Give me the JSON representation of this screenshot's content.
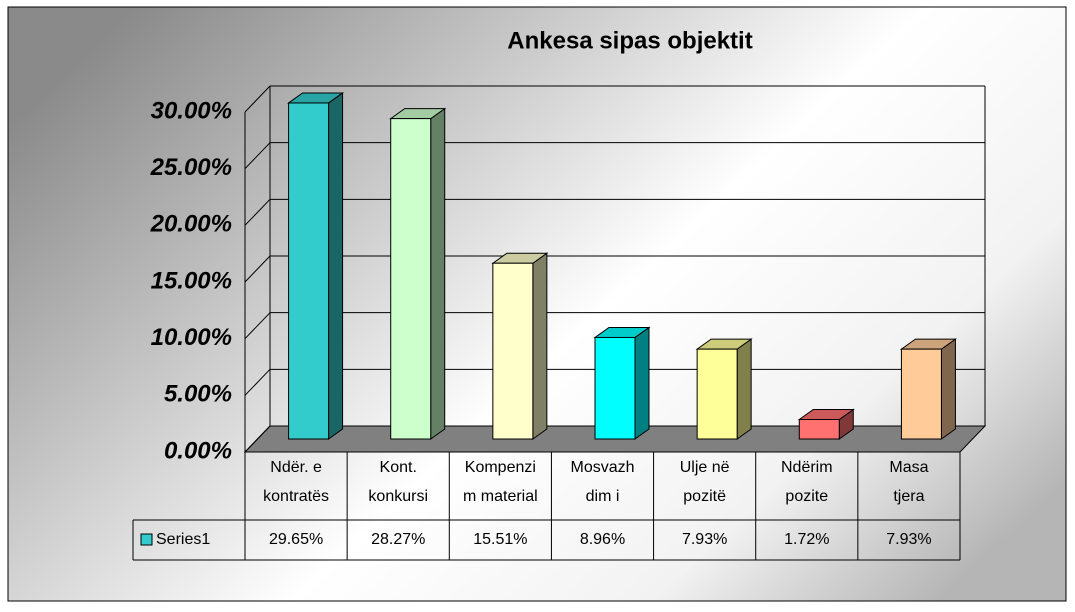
{
  "chart_data": {
    "type": "bar3d",
    "title": "Ankesa sipas objektit",
    "categories": [
      [
        "Ndër. e",
        "kontratës"
      ],
      [
        "Kont.",
        "konkursi"
      ],
      [
        "Kompenzi",
        "m material"
      ],
      [
        "Mosvazh",
        "dim i"
      ],
      [
        "Ulje në",
        "pozitë"
      ],
      [
        "Ndërim",
        "pozite"
      ],
      [
        "Masa",
        "tjera"
      ]
    ],
    "series": [
      {
        "name": "Series1",
        "color": "#33cccc",
        "colors": [
          "#33cccc",
          "#ccffcc",
          "#ffffcc",
          "#00ffff",
          "#ffff99",
          "#ff7070",
          "#ffcc99"
        ],
        "values": [
          29.65,
          28.27,
          15.51,
          8.96,
          7.93,
          1.72,
          7.93
        ],
        "value_labels": [
          "29.65%",
          "28.27%",
          "15.51%",
          "8.96%",
          "7.93%",
          "1.72%",
          "7.93%"
        ]
      }
    ],
    "ylim": [
      0,
      30
    ],
    "yticks": [
      {
        "value": 0,
        "label": "0.00%"
      },
      {
        "value": 5,
        "label": "5.00%"
      },
      {
        "value": 10,
        "label": "10.00%"
      },
      {
        "value": 15,
        "label": "15.00%"
      },
      {
        "value": 20,
        "label": "20.00%"
      },
      {
        "value": 25,
        "label": "25.00%"
      },
      {
        "value": 30,
        "label": "30.00%"
      }
    ],
    "grid": true,
    "data_table": true
  }
}
